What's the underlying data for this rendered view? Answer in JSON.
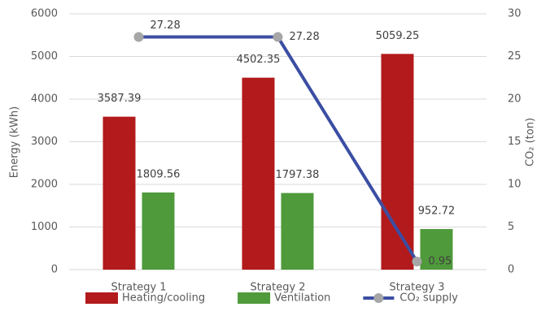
{
  "chart_data": {
    "type": "bar_line",
    "categories": [
      "Strategy 1",
      "Strategy 2",
      "Strategy 3"
    ],
    "series": [
      {
        "name": "Heating/cooling",
        "type": "bar",
        "color": "#b21a1b",
        "values": [
          3587.39,
          4502.35,
          5059.25
        ]
      },
      {
        "name": "Ventilation",
        "type": "bar",
        "color": "#4f9a3b",
        "values": [
          1809.56,
          1797.38,
          952.72
        ]
      },
      {
        "name": "CO₂ supply",
        "type": "line",
        "axis": "y2",
        "color": "#3b4ea3",
        "marker_color": "#a6a6a6",
        "values": [
          27.28,
          27.28,
          0.95
        ]
      }
    ],
    "ylabel": "Energy (kWh)",
    "y2label": "CO₂ (ton)",
    "ylim": [
      0,
      6000
    ],
    "yticks": [
      0,
      1000,
      2000,
      3000,
      4000,
      5000,
      6000
    ],
    "y2lim": [
      0,
      30
    ],
    "y2ticks": [
      0,
      5,
      10,
      15,
      20,
      25,
      30
    ],
    "grid": true,
    "legend": "bottom"
  }
}
